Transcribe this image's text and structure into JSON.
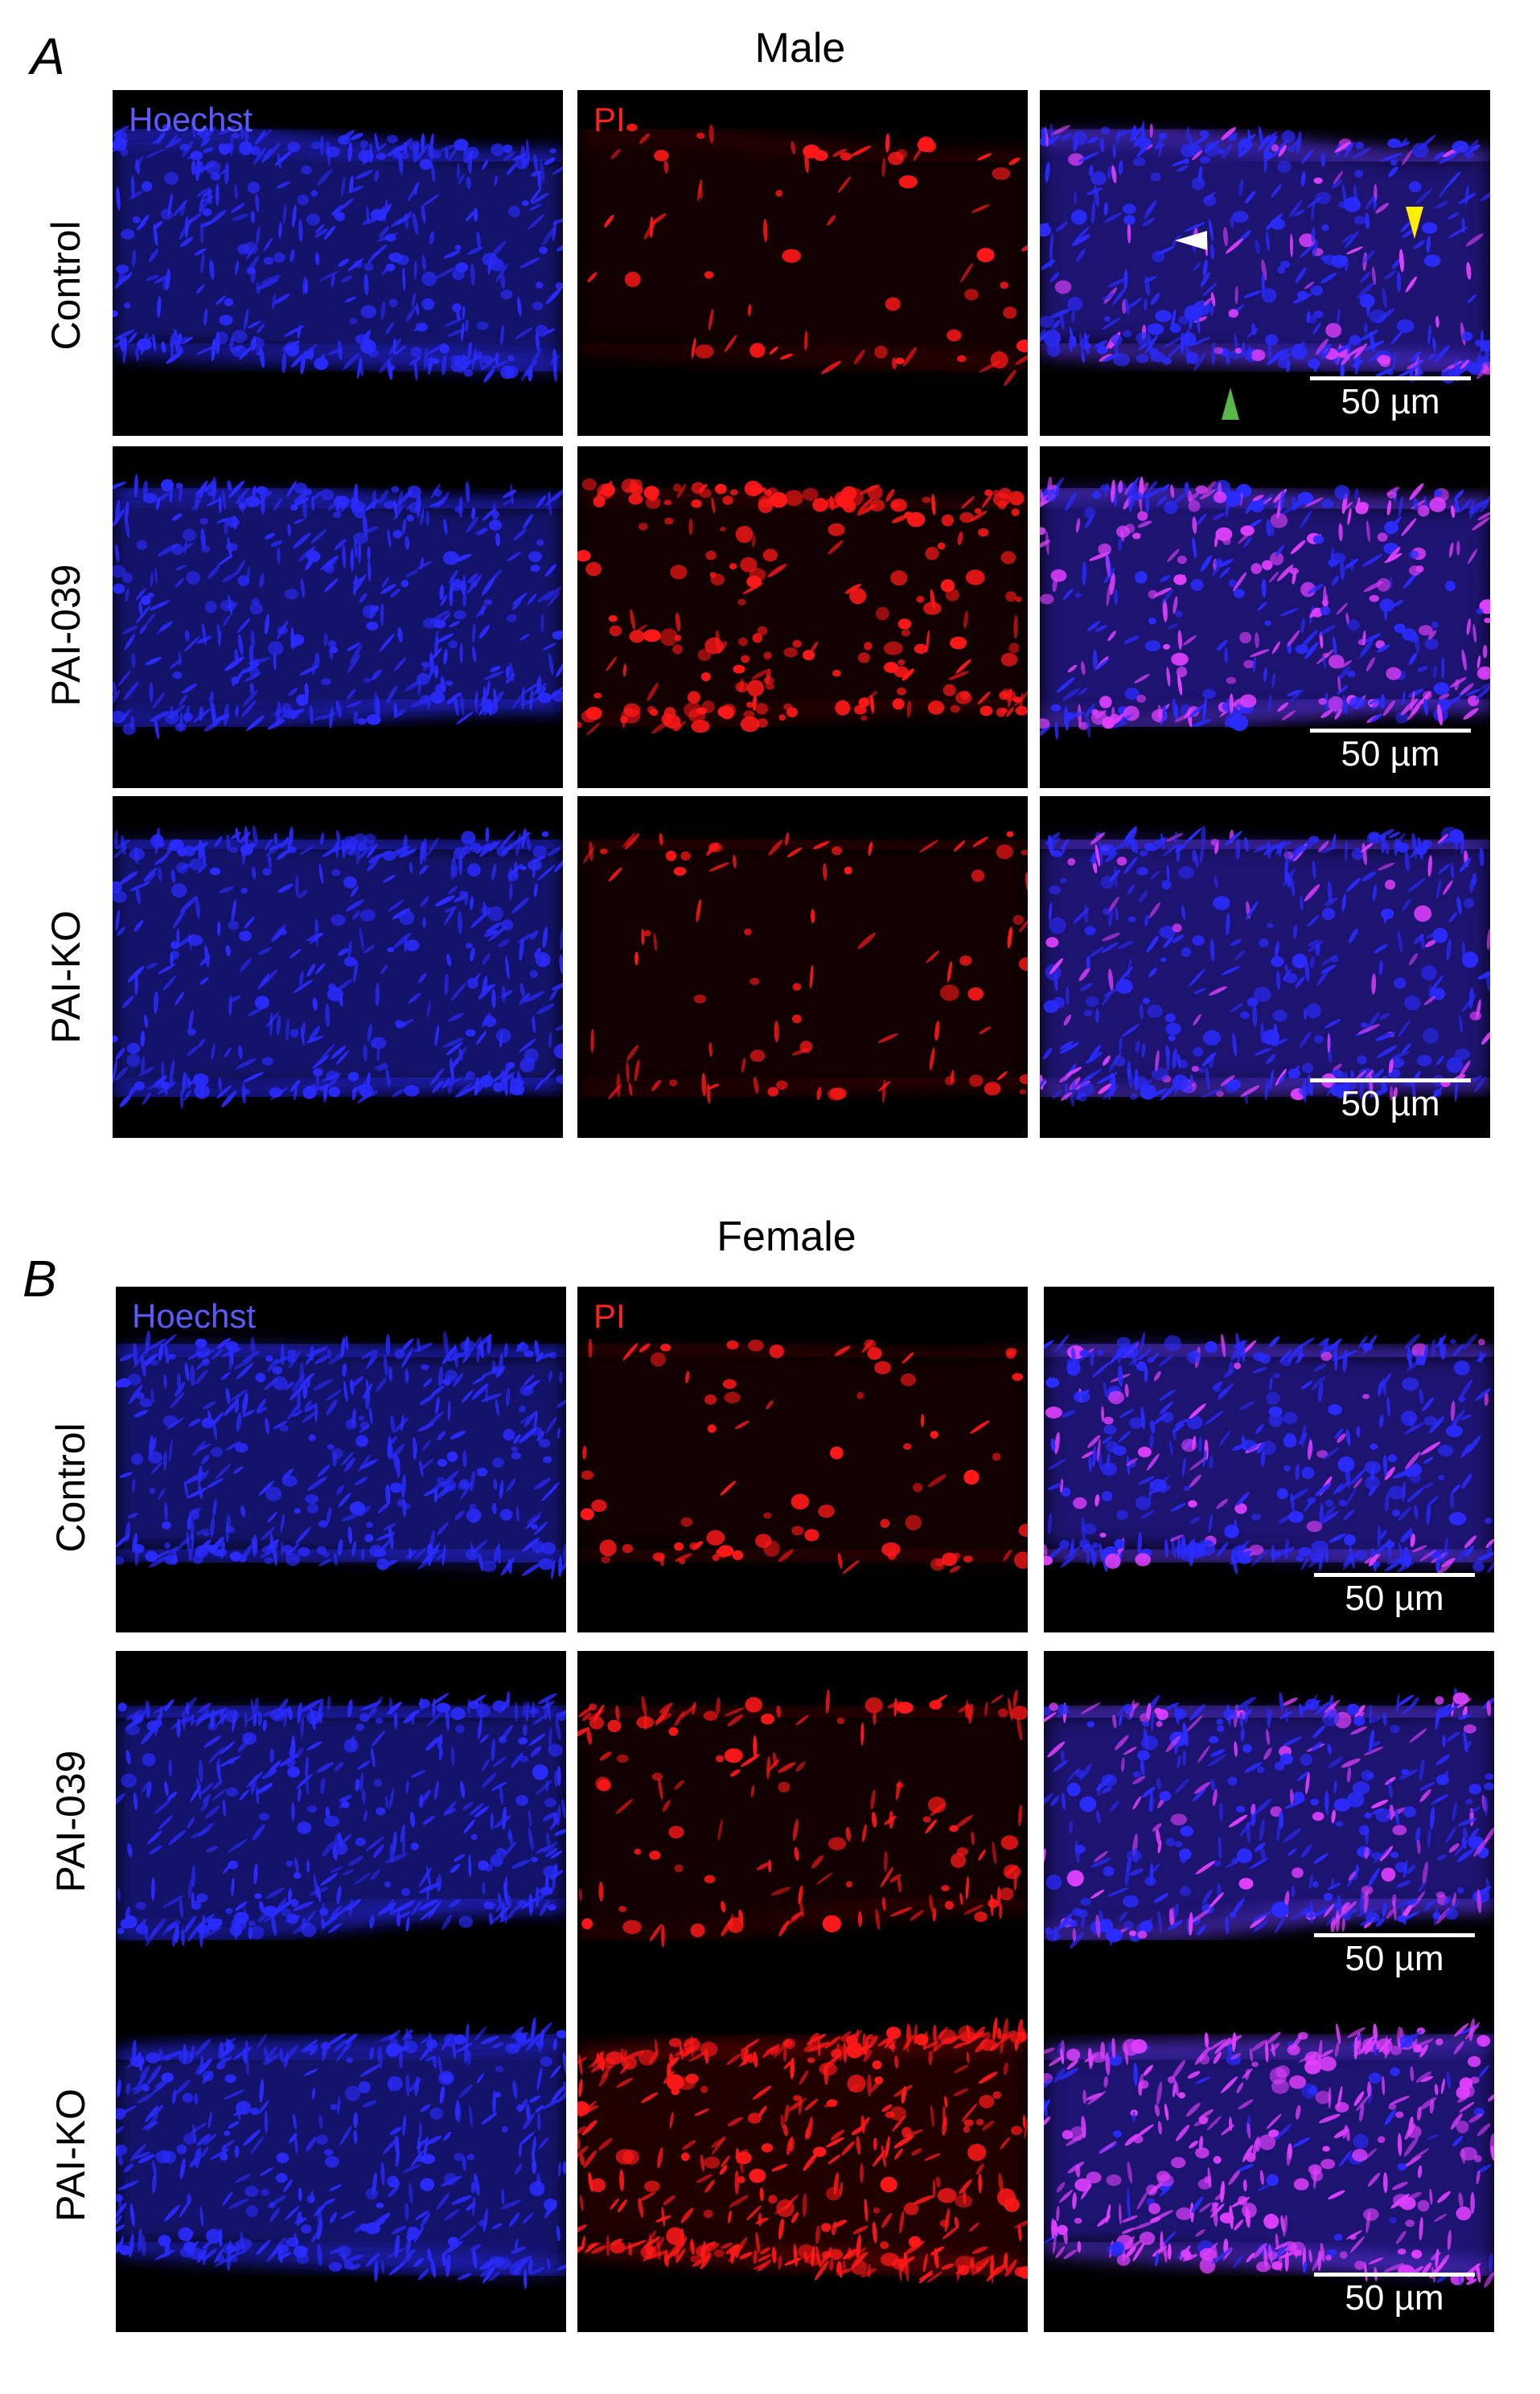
{
  "sections": [
    {
      "letter": "A",
      "title": "Male",
      "rows": [
        {
          "label": "Control"
        },
        {
          "label": "PAI-039"
        },
        {
          "label": "PAI-KO"
        }
      ]
    },
    {
      "letter": "B",
      "title": "Female",
      "rows": [
        {
          "label": "Control"
        },
        {
          "label": "PAI-039"
        },
        {
          "label": "PAI-KO"
        }
      ]
    }
  ],
  "channels": {
    "hoechst": "Hoechst",
    "pi": "PI"
  },
  "scale_bar_label": "50 µm",
  "colors": {
    "hoechst_label": "#5a5aff",
    "pi_label": "#ff2020",
    "nuclei_blue": "#2a2cff",
    "nuclei_red": "#ff1818",
    "nuclei_merge": "#e040ff",
    "arrow_white": "#ffffff",
    "arrow_yellow": "#ffee00",
    "arrow_green": "#59b848"
  }
}
